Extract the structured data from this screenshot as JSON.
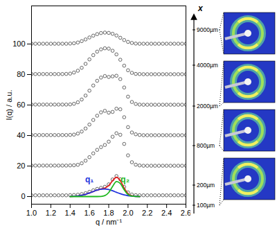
{
  "chart_data": {
    "type": "line",
    "xlabel": "q / nm⁻¹",
    "ylabel": "I(q) / a.u.",
    "x": [
      1,
      1.04,
      1.08,
      1.12,
      1.16,
      1.2,
      1.24,
      1.28,
      1.32,
      1.36,
      1.4,
      1.44,
      1.48,
      1.52,
      1.56,
      1.6,
      1.64,
      1.68,
      1.72,
      1.76,
      1.8,
      1.84,
      1.88,
      1.92,
      1.96,
      2,
      2.04,
      2.08,
      2.12,
      2.16,
      2.2,
      2.24,
      2.28,
      2.32,
      2.36,
      2.4,
      2.44,
      2.48,
      2.52,
      2.56,
      2.6
    ],
    "xlim": [
      1.0,
      2.6
    ],
    "xticks": [
      {
        "value": 1,
        "label": "1.0"
      },
      1.2,
      1.4,
      1.6,
      1.8,
      {
        "value": 2,
        "label": "2.0"
      },
      2.2,
      2.4,
      2.6
    ],
    "ylim": [
      -5,
      125
    ],
    "yticks": [
      0,
      20,
      40,
      60,
      80,
      100
    ],
    "series": [
      {
        "name": "100µm",
        "type": "scatter",
        "marker": "circle",
        "color": "#555555",
        "values": [
          0.8,
          0.8,
          0.8,
          0.8,
          0.8,
          0.8,
          0.8,
          0.8,
          0.8,
          0.8,
          0.9,
          1.0,
          1.2,
          1.6,
          2.2,
          3.1,
          4.1,
          5.0,
          5.7,
          6.4,
          8.0,
          11.2,
          13.4,
          11.3,
          6.3,
          2.7,
          1.3,
          0.9,
          0.8,
          0.8,
          0.8,
          0.8,
          0.8,
          0.8,
          0.8,
          0.8,
          0.8,
          0.8,
          0.8,
          0.8,
          0.8
        ]
      },
      {
        "name": "200µm",
        "type": "scatter",
        "marker": "circle",
        "color": "#555555",
        "values": [
          20.3,
          20.3,
          20.3,
          20.3,
          20.3,
          20.3,
          20.3,
          20.3,
          20.3,
          20.3,
          20.4,
          20.5,
          20.8,
          21.8,
          23.5,
          25.8,
          28.3,
          30.6,
          32.4,
          33.8,
          36.0,
          39.2,
          41.5,
          40.5,
          34.5,
          27.0,
          22.5,
          20.9,
          20.4,
          20.2,
          20.2,
          20.2,
          20.2,
          20.2,
          20.2,
          20.2,
          20.2,
          20.2,
          20.2,
          20.2,
          20.2
        ]
      },
      {
        "name": "800µm",
        "type": "scatter",
        "marker": "circle",
        "color": "#555555",
        "values": [
          40.3,
          40.3,
          40.3,
          40.3,
          40.3,
          40.3,
          40.3,
          40.3,
          40.3,
          40.3,
          40.4,
          40.6,
          41.3,
          42.6,
          44.6,
          47.2,
          50.2,
          53.0,
          55.2,
          56.2,
          55.0,
          55.5,
          57.6,
          57.2,
          52.0,
          45.5,
          42.0,
          40.8,
          40.4,
          40.2,
          40.2,
          40.2,
          40.2,
          40.2,
          40.2,
          40.2,
          40.2,
          40.2,
          40.2,
          40.2,
          40.2
        ]
      },
      {
        "name": "2000µm",
        "type": "scatter",
        "marker": "circle",
        "color": "#555555",
        "values": [
          60.3,
          60.3,
          60.3,
          60.3,
          60.3,
          60.3,
          60.3,
          60.3,
          60.3,
          60.3,
          60.4,
          60.8,
          61.8,
          63.6,
          66.2,
          69.4,
          72.8,
          75.9,
          78.0,
          79.0,
          78.4,
          78.8,
          79.2,
          77.0,
          71.5,
          65.5,
          62.0,
          60.7,
          60.3,
          60.2,
          60.2,
          60.2,
          60.2,
          60.2,
          60.2,
          60.2,
          60.2,
          60.2,
          60.2,
          60.2,
          60.2
        ]
      },
      {
        "name": "4000µm",
        "type": "scatter",
        "marker": "circle",
        "color": "#555555",
        "values": [
          80.3,
          80.3,
          80.3,
          80.3,
          80.3,
          80.3,
          80.3,
          80.3,
          80.3,
          80.4,
          80.6,
          81.3,
          82.5,
          84.4,
          87.0,
          89.9,
          92.7,
          95.0,
          96.5,
          97.2,
          97.0,
          95.6,
          93.2,
          89.7,
          85.8,
          82.8,
          81.1,
          80.4,
          80.3,
          80.2,
          80.2,
          80.2,
          80.2,
          80.2,
          80.2,
          80.2,
          80.2,
          80.2,
          80.2,
          80.2,
          80.2
        ]
      },
      {
        "name": "9000µm",
        "type": "scatter",
        "marker": "circle",
        "color": "#555555",
        "values": [
          100.2,
          100.2,
          100.2,
          100.2,
          100.2,
          100.2,
          100.2,
          100.2,
          100.2,
          100.2,
          100.3,
          100.5,
          101.0,
          101.9,
          103.0,
          104.3,
          105.5,
          106.5,
          107.2,
          107.5,
          107.3,
          106.7,
          105.6,
          104.1,
          102.6,
          101.4,
          100.7,
          100.3,
          100.2,
          100.2,
          100.2,
          100.2,
          100.2,
          100.2,
          100.2,
          100.2,
          100.2,
          100.2,
          100.2,
          100.2,
          100.2
        ]
      },
      {
        "type": "line",
        "line_style": "solid",
        "color": "#e02020",
        "values": [
          null,
          null,
          null,
          null,
          null,
          null,
          null,
          null,
          null,
          null,
          0.07,
          0.18,
          0.4,
          0.8,
          1.43,
          2.29,
          3.29,
          4.23,
          4.93,
          5.59,
          7.2,
          10.4,
          12.62,
          10.46,
          5.53,
          1.92,
          0.51,
          0.14,
          0.04,
          null,
          null,
          null,
          null,
          null,
          null,
          null,
          null,
          null,
          null,
          null,
          null
        ]
      },
      {
        "type": "line",
        "line_style": "solid",
        "color": "#2233dd",
        "values": [
          null,
          null,
          null,
          null,
          null,
          null,
          null,
          null,
          null,
          null,
          0.07,
          0.18,
          0.4,
          0.8,
          1.43,
          2.29,
          3.29,
          4.22,
          4.85,
          4.98,
          4.58,
          3.78,
          2.78,
          1.84,
          1.08,
          0.57,
          0.27,
          0.11,
          0.04,
          null,
          null,
          null,
          null,
          null,
          null,
          null,
          null,
          null,
          null,
          null,
          null
        ]
      },
      {
        "type": "line",
        "line_style": "solid",
        "color": "#1fb81f",
        "values": [
          null,
          null,
          null,
          null,
          null,
          null,
          null,
          null,
          null,
          null,
          0,
          0,
          0,
          0,
          0,
          0,
          0,
          0.01,
          0.08,
          0.61,
          2.62,
          6.62,
          9.84,
          8.62,
          4.45,
          1.35,
          0.24,
          0.03,
          0,
          null,
          null,
          null,
          null,
          null,
          null,
          null,
          null,
          null,
          null,
          null,
          null
        ]
      }
    ],
    "annotations": [
      {
        "text": "q₁",
        "x": 1.6,
        "y": 11,
        "color": "#2233dd"
      },
      {
        "text": "q₂",
        "x": 1.97,
        "y": 11,
        "color": "#1fb81f"
      }
    ]
  },
  "position_axis": {
    "label": "x",
    "patterns": [
      "9000µm",
      "2000µm",
      "800µm",
      "100µm"
    ]
  }
}
